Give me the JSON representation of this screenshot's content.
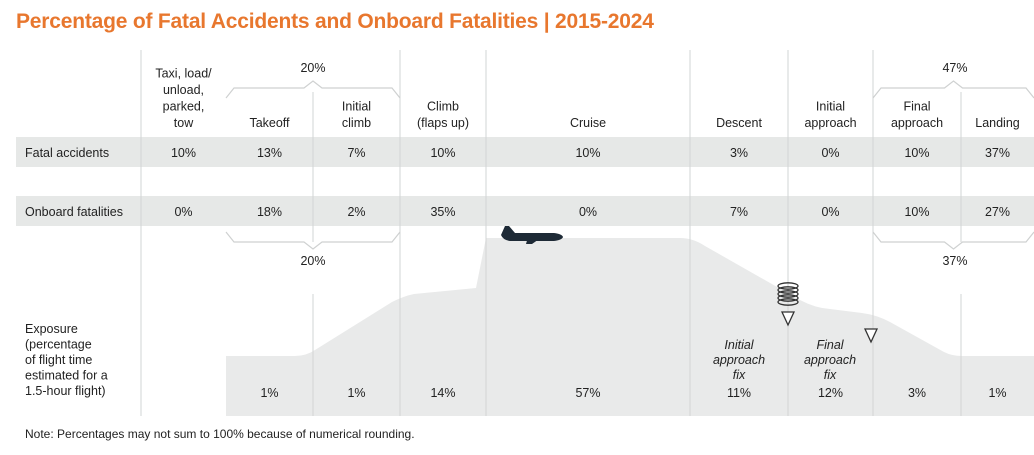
{
  "title": "Percentage of Fatal Accidents and Onboard Fatalities | 2015-2024",
  "note": "Note: Percentages may not sum to 100% because of numerical rounding.",
  "colors": {
    "title": "#e8772e",
    "band": "#e6e8e7",
    "profile": "#e9eaea",
    "grid": "#d2d4d4",
    "bracket": "#cfd1d1",
    "text": "#222222",
    "aircraft": "#1e2a36"
  },
  "chart_data": {
    "type": "table",
    "phases": [
      {
        "label": [
          "Taxi, load/",
          "unload,",
          "parked,",
          "tow"
        ],
        "fatal_accidents": "10%",
        "onboard_fatalities": "0%",
        "exposure": ""
      },
      {
        "label": [
          "Takeoff"
        ],
        "fatal_accidents": "13%",
        "onboard_fatalities": "18%",
        "exposure": "1%"
      },
      {
        "label": [
          "Initial",
          "climb"
        ],
        "fatal_accidents": "7%",
        "onboard_fatalities": "2%",
        "exposure": "1%"
      },
      {
        "label": [
          "Climb",
          "(flaps up)"
        ],
        "fatal_accidents": "10%",
        "onboard_fatalities": "35%",
        "exposure": "14%"
      },
      {
        "label": [
          "Cruise"
        ],
        "fatal_accidents": "10%",
        "onboard_fatalities": "0%",
        "exposure": "57%"
      },
      {
        "label": [
          "Descent"
        ],
        "fatal_accidents": "3%",
        "onboard_fatalities": "7%",
        "exposure": "11%"
      },
      {
        "label": [
          "Initial",
          "approach"
        ],
        "fatal_accidents": "0%",
        "onboard_fatalities": "0%",
        "exposure": "12%"
      },
      {
        "label": [
          "Final",
          "approach"
        ],
        "fatal_accidents": "10%",
        "onboard_fatalities": "10%",
        "exposure": "3%"
      },
      {
        "label": [
          "Landing"
        ],
        "fatal_accidents": "37%",
        "onboard_fatalities": "27%",
        "exposure": "1%"
      }
    ],
    "rows": {
      "fatal_accidents": "Fatal accidents",
      "onboard_fatalities": "Onboard fatalities",
      "exposure": [
        "Exposure",
        "(percentage",
        "of flight time",
        "estimated for a",
        "1.5-hour flight)"
      ]
    },
    "groups": {
      "takeoff_climb_accidents": "20%",
      "takeoff_climb_fatalities": "20%",
      "approach_landing_accidents": "47%",
      "approach_landing_fatalities": "37%"
    },
    "markers": {
      "initial_approach_fix": [
        "Initial",
        "approach",
        "fix"
      ],
      "final_approach_fix": [
        "Final",
        "approach",
        "fix"
      ]
    }
  }
}
